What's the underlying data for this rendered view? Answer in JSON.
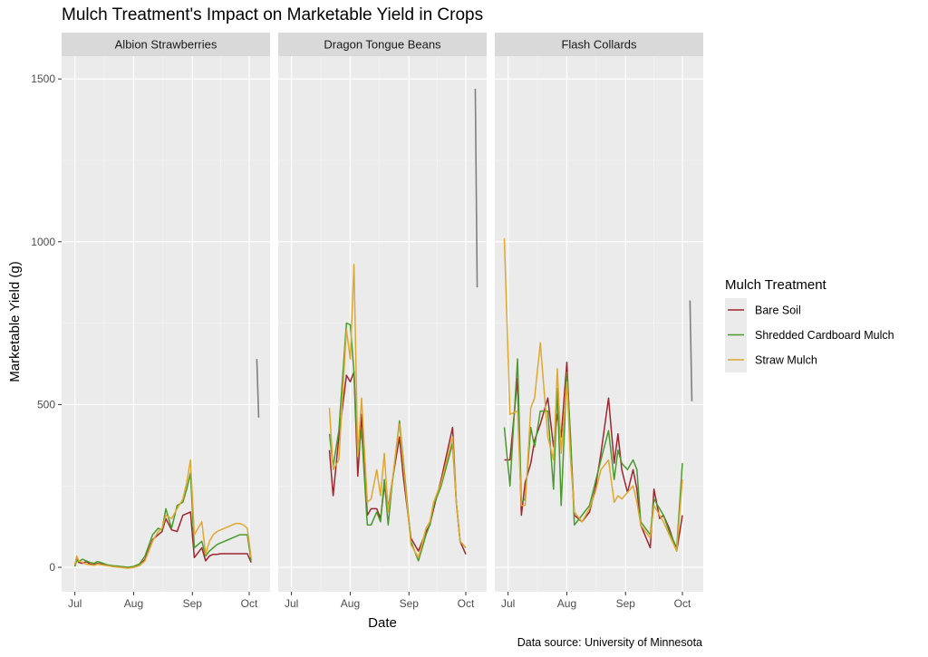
{
  "chart_data": {
    "type": "line",
    "title": "Mulch Treatment's Impact on Marketable Yield in Crops",
    "xlabel": "Date",
    "ylabel": "Marketable Yield (g)",
    "caption": "Data source: University of Minnesota",
    "x_unit": "days since Jul 1",
    "xlim": [
      -7,
      103
    ],
    "ylim": [
      -75,
      1570
    ],
    "x_ticks": [
      {
        "label": "Jul",
        "day": 0
      },
      {
        "label": "Aug",
        "day": 31
      },
      {
        "label": "Sep",
        "day": 62
      },
      {
        "label": "Oct",
        "day": 92
      }
    ],
    "y_ticks": [
      0,
      500,
      1000,
      1500
    ],
    "grid": true,
    "legend": {
      "title": "Mulch Treatment",
      "position": "right",
      "entries": [
        "Bare Soil",
        "Shredded Cardboard Mulch",
        "Straw Mulch"
      ]
    },
    "colors": {
      "Bare Soil": "#a0262e",
      "Shredded Cardboard Mulch": "#4a9a2e",
      "Straw Mulch": "#e0a830",
      "annotation": "#808080",
      "panel_bg": "#ebebeb",
      "strip_bg": "#d9d9d9"
    },
    "panels": [
      {
        "name": "Albion Strawberries",
        "annotation_segment": {
          "day": [
            96,
            97
          ],
          "y": [
            640,
            460
          ]
        },
        "series": [
          {
            "name": "Bare Soil",
            "x": [
              0,
              1,
              2,
              4,
              6,
              8,
              10,
              12,
              14,
              17,
              20,
              24,
              28,
              31,
              34,
              37,
              41,
              44,
              46,
              48,
              51,
              54,
              57,
              59,
              61,
              63,
              67,
              69,
              71,
              73,
              75,
              77,
              79,
              81,
              83,
              85,
              87,
              89,
              91,
              93
            ],
            "y": [
              5,
              30,
              15,
              12,
              18,
              10,
              8,
              12,
              10,
              6,
              3,
              2,
              0,
              2,
              5,
              25,
              85,
              100,
              110,
              150,
              115,
              110,
              160,
              165,
              170,
              30,
              60,
              20,
              35,
              40,
              40,
              42,
              42,
              42,
              42,
              42,
              42,
              42,
              42,
              15
            ]
          },
          {
            "name": "Shredded Cardboard Mulch",
            "x": [
              0,
              1,
              2,
              4,
              6,
              8,
              10,
              12,
              14,
              17,
              20,
              24,
              28,
              31,
              34,
              37,
              41,
              44,
              46,
              48,
              51,
              54,
              57,
              59,
              61,
              63,
              67,
              69,
              71,
              73,
              75,
              77,
              79,
              81,
              83,
              85,
              87,
              89,
              91,
              93
            ],
            "y": [
              3,
              22,
              18,
              25,
              20,
              15,
              12,
              18,
              14,
              8,
              5,
              3,
              0,
              3,
              10,
              35,
              100,
              120,
              115,
              180,
              120,
              190,
              200,
              240,
              290,
              60,
              80,
              35,
              50,
              60,
              70,
              75,
              80,
              85,
              90,
              95,
              100,
              100,
              100,
              20
            ]
          },
          {
            "name": "Straw Mulch",
            "x": [
              0,
              1,
              2,
              4,
              6,
              8,
              10,
              12,
              14,
              17,
              20,
              24,
              28,
              31,
              34,
              37,
              41,
              44,
              46,
              48,
              51,
              54,
              57,
              59,
              61,
              63,
              67,
              69,
              71,
              73,
              75,
              77,
              79,
              81,
              83,
              85,
              87,
              89,
              91,
              93
            ],
            "y": [
              8,
              35,
              20,
              15,
              10,
              8,
              6,
              10,
              8,
              5,
              2,
              0,
              -3,
              0,
              5,
              20,
              80,
              110,
              120,
              160,
              150,
              180,
              210,
              260,
              330,
              100,
              140,
              40,
              80,
              100,
              110,
              115,
              120,
              125,
              130,
              135,
              135,
              130,
              120,
              30
            ]
          }
        ]
      },
      {
        "name": "Dragon Tongue Beans",
        "annotation_segment": {
          "day": [
            97,
            98
          ],
          "y": [
            1470,
            860
          ]
        },
        "series": [
          {
            "name": "Bare Soil",
            "x": [
              20,
              22,
              25,
              29,
              31,
              33,
              35,
              37,
              40,
              42,
              45,
              47,
              49,
              51,
              53,
              57,
              59,
              63,
              67,
              71,
              73,
              75,
              79,
              85,
              87,
              89,
              92
            ],
            "y": [
              360,
              220,
              400,
              590,
              570,
              600,
              280,
              470,
              160,
              180,
              180,
              150,
              250,
              180,
              260,
              400,
              280,
              90,
              50,
              110,
              130,
              180,
              270,
              430,
              200,
              80,
              40
            ]
          },
          {
            "name": "Shredded Cardboard Mulch",
            "x": [
              20,
              22,
              25,
              29,
              31,
              33,
              35,
              37,
              40,
              42,
              45,
              47,
              49,
              51,
              53,
              57,
              59,
              63,
              67,
              71,
              73,
              75,
              79,
              85,
              87,
              89,
              92
            ],
            "y": [
              410,
              310,
              420,
              750,
              745,
              600,
              340,
              420,
              130,
              130,
              170,
              140,
              270,
              130,
              250,
              450,
              330,
              80,
              20,
              100,
              130,
              190,
              250,
              380,
              200,
              80,
              60
            ]
          },
          {
            "name": "Straw Mulch",
            "x": [
              20,
              22,
              25,
              29,
              31,
              33,
              35,
              37,
              40,
              42,
              45,
              47,
              49,
              51,
              53,
              57,
              59,
              63,
              67,
              71,
              73,
              75,
              79,
              85,
              87,
              89,
              92
            ],
            "y": [
              490,
              300,
              330,
              730,
              640,
              930,
              340,
              520,
              200,
              210,
              300,
              220,
              350,
              170,
              260,
              440,
              320,
              70,
              30,
              120,
              140,
              200,
              260,
              400,
              200,
              80,
              60
            ]
          }
        ]
      },
      {
        "name": "Flash Collards",
        "annotation_segment": {
          "day": [
            96,
            97
          ],
          "y": [
            820,
            510
          ]
        },
        "series": [
          {
            "name": "Bare Soil",
            "x": [
              -2,
              1,
              5,
              7,
              9,
              12,
              14,
              17,
              21,
              24,
              26,
              28,
              31,
              33,
              35,
              39,
              43,
              46,
              49,
              53,
              56,
              58,
              60,
              63,
              66,
              68,
              70,
              75,
              77,
              80,
              82,
              85,
              89,
              92
            ],
            "y": [
              330,
              330,
              580,
              160,
              260,
              320,
              390,
              440,
              520,
              370,
              470,
              400,
              630,
              380,
              160,
              140,
              170,
              240,
              350,
              520,
              320,
              410,
              300,
              230,
              300,
              240,
              130,
              60,
              240,
              150,
              160,
              120,
              50,
              160
            ]
          },
          {
            "name": "Shredded Cardboard Mulch",
            "x": [
              -2,
              1,
              5,
              7,
              9,
              12,
              14,
              17,
              21,
              24,
              26,
              28,
              31,
              33,
              35,
              39,
              43,
              46,
              49,
              53,
              56,
              58,
              60,
              63,
              66,
              68,
              70,
              75,
              77,
              80,
              82,
              85,
              89,
              92
            ],
            "y": [
              430,
              250,
              640,
              200,
              210,
              430,
              370,
              480,
              480,
              240,
              550,
              190,
              600,
              400,
              130,
              160,
              190,
              260,
              330,
              420,
              270,
              360,
              320,
              300,
              330,
              300,
              140,
              100,
              210,
              180,
              160,
              110,
              60,
              320
            ]
          },
          {
            "name": "Straw Mulch",
            "x": [
              -2,
              1,
              5,
              7,
              9,
              12,
              14,
              17,
              21,
              24,
              26,
              28,
              31,
              33,
              35,
              39,
              43,
              46,
              49,
              53,
              56,
              58,
              60,
              63,
              66,
              68,
              70,
              75,
              77,
              80,
              82,
              85,
              89,
              92
            ],
            "y": [
              1010,
              470,
              480,
              190,
              190,
              490,
              520,
              690,
              400,
              330,
              610,
              350,
              570,
              330,
              170,
              140,
              180,
              230,
              300,
              330,
              200,
              220,
              210,
              230,
              250,
              200,
              130,
              90,
              190,
              160,
              140,
              100,
              50,
              270
            ]
          }
        ]
      }
    ]
  }
}
